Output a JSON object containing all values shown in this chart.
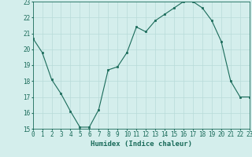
{
  "x": [
    0,
    1,
    2,
    3,
    4,
    5,
    6,
    7,
    8,
    9,
    10,
    11,
    12,
    13,
    14,
    15,
    16,
    17,
    18,
    19,
    20,
    21,
    22,
    23
  ],
  "y": [
    20.7,
    19.8,
    18.1,
    17.2,
    16.1,
    15.1,
    15.1,
    16.2,
    18.7,
    18.9,
    19.8,
    21.4,
    21.1,
    21.8,
    22.2,
    22.6,
    23.0,
    23.0,
    22.6,
    21.8,
    20.5,
    18.0,
    17.0,
    17.0
  ],
  "xlabel": "Humidex (Indice chaleur)",
  "ylim": [
    15,
    23
  ],
  "xlim": [
    0,
    23
  ],
  "yticks": [
    15,
    16,
    17,
    18,
    19,
    20,
    21,
    22,
    23
  ],
  "xticks": [
    0,
    1,
    2,
    3,
    4,
    5,
    6,
    7,
    8,
    9,
    10,
    11,
    12,
    13,
    14,
    15,
    16,
    17,
    18,
    19,
    20,
    21,
    22,
    23
  ],
  "line_color": "#1a6b5a",
  "marker_color": "#1a6b5a",
  "bg_color": "#d4eeec",
  "grid_color": "#b8dbd8",
  "axis_color": "#1a6b5a",
  "label_color": "#1a6b5a",
  "xlabel_fontsize": 6.5,
  "tick_fontsize": 5.5
}
